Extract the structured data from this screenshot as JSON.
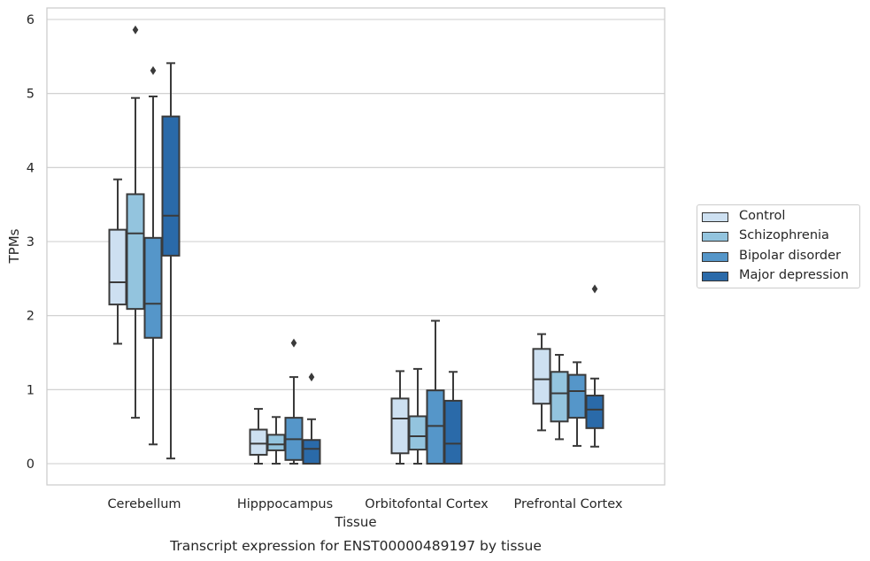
{
  "chart_data": {
    "type": "box",
    "title": "Transcript expression for ENST00000489197 by tissue",
    "xlabel": "Tissue",
    "ylabel": "TPMs",
    "ylim": [
      -0.3,
      6.15
    ],
    "yticks": [
      0,
      1,
      2,
      3,
      4,
      5,
      6
    ],
    "categories": [
      "Cerebellum",
      "Hipppocampus",
      "Orbitofontal Cortex",
      "Prefrontal Cortex"
    ],
    "grid": "horizontal",
    "legend_position": "right",
    "series": [
      {
        "name": "Control",
        "color": "#cde0f1",
        "boxes": [
          {
            "whislo": 1.62,
            "q1": 2.15,
            "med": 2.45,
            "q3": 3.16,
            "whishi": 3.84,
            "fliers": []
          },
          {
            "whislo": 0.0,
            "q1": 0.12,
            "med": 0.27,
            "q3": 0.46,
            "whishi": 0.74,
            "fliers": []
          },
          {
            "whislo": 0.0,
            "q1": 0.14,
            "med": 0.61,
            "q3": 0.88,
            "whishi": 1.25,
            "fliers": []
          },
          {
            "whislo": 0.45,
            "q1": 0.81,
            "med": 1.14,
            "q3": 1.55,
            "whishi": 1.75,
            "fliers": []
          }
        ]
      },
      {
        "name": "Schizophrenia",
        "color": "#93c4de",
        "boxes": [
          {
            "whislo": 0.62,
            "q1": 2.09,
            "med": 3.11,
            "q3": 3.64,
            "whishi": 4.94,
            "fliers": [
              5.86
            ]
          },
          {
            "whislo": 0.0,
            "q1": 0.18,
            "med": 0.26,
            "q3": 0.39,
            "whishi": 0.63,
            "fliers": []
          },
          {
            "whislo": 0.0,
            "q1": 0.19,
            "med": 0.37,
            "q3": 0.64,
            "whishi": 1.28,
            "fliers": []
          },
          {
            "whislo": 0.33,
            "q1": 0.57,
            "med": 0.95,
            "q3": 1.24,
            "whishi": 1.47,
            "fliers": []
          }
        ]
      },
      {
        "name": "Bipolar disorder",
        "color": "#5596c9",
        "boxes": [
          {
            "whislo": 0.26,
            "q1": 1.7,
            "med": 2.16,
            "q3": 3.05,
            "whishi": 4.96,
            "fliers": [
              5.31
            ]
          },
          {
            "whislo": 0.0,
            "q1": 0.05,
            "med": 0.33,
            "q3": 0.62,
            "whishi": 1.17,
            "fliers": [
              1.63
            ]
          },
          {
            "whislo": 0.0,
            "q1": 0.0,
            "med": 0.51,
            "q3": 0.99,
            "whishi": 1.93,
            "fliers": []
          },
          {
            "whislo": 0.24,
            "q1": 0.62,
            "med": 0.98,
            "q3": 1.2,
            "whishi": 1.37,
            "fliers": []
          }
        ]
      },
      {
        "name": "Major depression",
        "color": "#2a6aa9",
        "boxes": [
          {
            "whislo": 0.07,
            "q1": 2.81,
            "med": 3.35,
            "q3": 4.69,
            "whishi": 5.41,
            "fliers": []
          },
          {
            "whislo": 0.0,
            "q1": 0.0,
            "med": 0.2,
            "q3": 0.32,
            "whishi": 0.6,
            "fliers": [
              1.17
            ]
          },
          {
            "whislo": 0.0,
            "q1": 0.0,
            "med": 0.27,
            "q3": 0.85,
            "whishi": 1.24,
            "fliers": []
          },
          {
            "whislo": 0.23,
            "q1": 0.48,
            "med": 0.73,
            "q3": 0.92,
            "whishi": 1.15,
            "fliers": [
              2.36
            ]
          }
        ]
      }
    ]
  }
}
